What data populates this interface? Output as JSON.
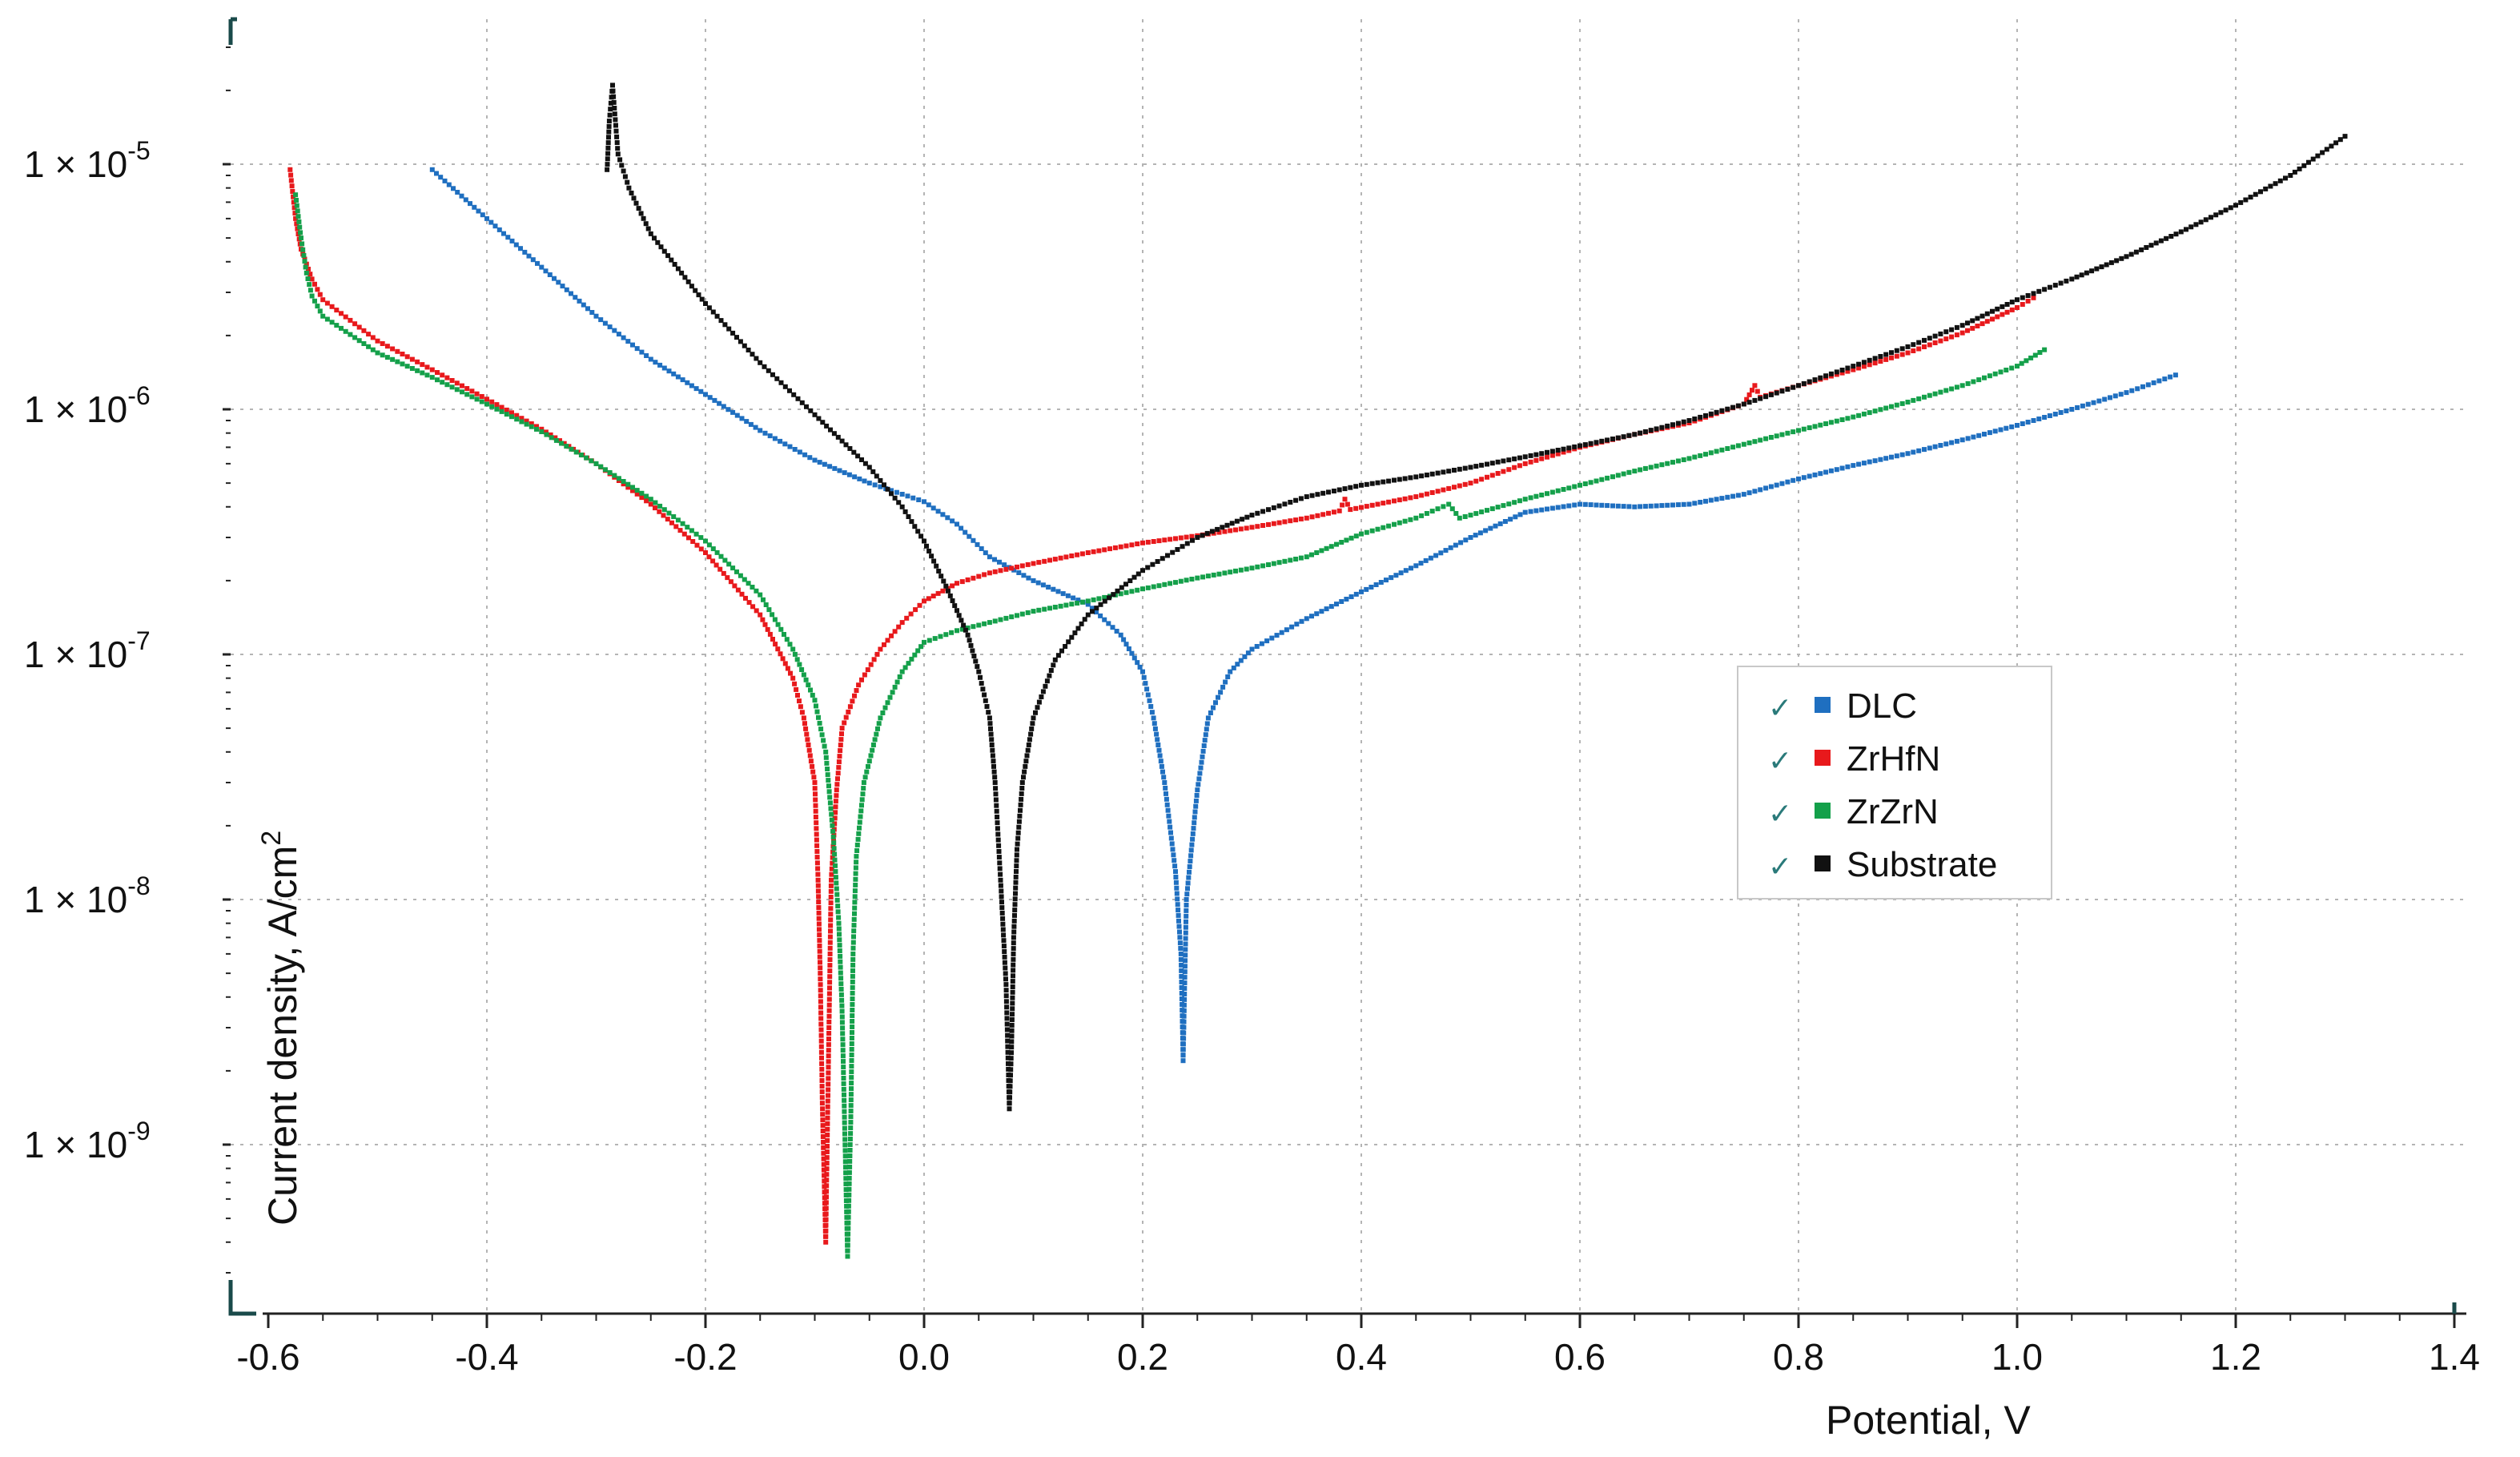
{
  "chart_data": {
    "type": "line",
    "title": "",
    "xlabel": "Potential, V",
    "ylabel": "Current density, A/cm",
    "ylabel_superscript": "2",
    "xscale": "linear",
    "yscale": "log",
    "xlim": [
      -0.67,
      1.41
    ],
    "ylim": [
      1.5e-10,
      4e-05
    ],
    "xticks": [
      -0.6,
      -0.4,
      -0.2,
      0.0,
      0.2,
      0.4,
      0.6,
      0.8,
      1.0,
      1.2,
      1.4
    ],
    "xtick_labels": [
      "-0.6",
      "-0.4",
      "-0.2",
      "0.0",
      "0.2",
      "0.4",
      "0.6",
      "0.8",
      "1.0",
      "1.2",
      "1.4"
    ],
    "yticks": [
      1e-05,
      1e-06,
      1e-07,
      1e-08,
      1e-09
    ],
    "ytick_labels": [
      {
        "base": "1 × 10",
        "exp": "-5"
      },
      {
        "base": "1 × 10",
        "exp": "-6"
      },
      {
        "base": "1 × 10",
        "exp": "-7"
      },
      {
        "base": "1 × 10",
        "exp": "-8"
      },
      {
        "base": "1 × 10",
        "exp": "-9"
      }
    ],
    "grid": true,
    "legend_position": "center-right",
    "legend_check_glyph": "✓",
    "series": [
      {
        "name": "DLC",
        "color": "#1f6fc0",
        "points": [
          [
            -0.45,
            9.5e-06
          ],
          [
            -0.4,
            6e-06
          ],
          [
            -0.35,
            3.8e-06
          ],
          [
            -0.3,
            2.4e-06
          ],
          [
            -0.25,
            1.6e-06
          ],
          [
            -0.2,
            1.15e-06
          ],
          [
            -0.15,
            8.2e-07
          ],
          [
            -0.1,
            6.2e-07
          ],
          [
            -0.05,
            5e-07
          ],
          [
            0.0,
            4.2e-07
          ],
          [
            0.03,
            3.4e-07
          ],
          [
            0.06,
            2.5e-07
          ],
          [
            0.1,
            2e-07
          ],
          [
            0.15,
            1.6e-07
          ],
          [
            0.18,
            1.2e-07
          ],
          [
            0.2,
            8.5e-08
          ],
          [
            0.21,
            5.5e-08
          ],
          [
            0.22,
            3e-08
          ],
          [
            0.23,
            1.3e-08
          ],
          [
            0.235,
            6e-09
          ],
          [
            0.237,
            2.2e-09
          ],
          [
            0.24,
            1e-08
          ],
          [
            0.25,
            2.8e-08
          ],
          [
            0.26,
            5.5e-08
          ],
          [
            0.28,
            8.5e-08
          ],
          [
            0.3,
            1.05e-07
          ],
          [
            0.35,
            1.4e-07
          ],
          [
            0.4,
            1.8e-07
          ],
          [
            0.45,
            2.3e-07
          ],
          [
            0.5,
            3e-07
          ],
          [
            0.55,
            3.8e-07
          ],
          [
            0.6,
            4.1e-07
          ],
          [
            0.65,
            4e-07
          ],
          [
            0.7,
            4.1e-07
          ],
          [
            0.75,
            4.5e-07
          ],
          [
            0.8,
            5.2e-07
          ],
          [
            0.85,
            5.9e-07
          ],
          [
            0.9,
            6.6e-07
          ],
          [
            0.95,
            7.5e-07
          ],
          [
            1.0,
            8.6e-07
          ],
          [
            1.05,
            1e-06
          ],
          [
            1.1,
            1.17e-06
          ],
          [
            1.145,
            1.38e-06
          ]
        ]
      },
      {
        "name": "ZrHfN",
        "color": "#e8191c",
        "points": [
          [
            -0.58,
            9.5e-06
          ],
          [
            -0.575,
            6e-06
          ],
          [
            -0.57,
            4.5e-06
          ],
          [
            -0.56,
            3.4e-06
          ],
          [
            -0.55,
            2.8e-06
          ],
          [
            -0.5,
            1.9e-06
          ],
          [
            -0.45,
            1.45e-06
          ],
          [
            -0.4,
            1.1e-06
          ],
          [
            -0.35,
            8.3e-07
          ],
          [
            -0.3,
            6e-07
          ],
          [
            -0.25,
            4.1e-07
          ],
          [
            -0.2,
            2.6e-07
          ],
          [
            -0.15,
            1.45e-07
          ],
          [
            -0.12,
            8e-08
          ],
          [
            -0.11,
            5.5e-08
          ],
          [
            -0.1,
            3e-08
          ],
          [
            -0.097,
            1.2e-08
          ],
          [
            -0.095,
            5e-09
          ],
          [
            -0.093,
            1.4e-09
          ],
          [
            -0.09,
            4e-10
          ],
          [
            -0.087,
            3e-09
          ],
          [
            -0.085,
            1.2e-08
          ],
          [
            -0.08,
            2.8e-08
          ],
          [
            -0.075,
            5e-08
          ],
          [
            -0.06,
            7.5e-08
          ],
          [
            -0.04,
            1.05e-07
          ],
          [
            -0.02,
            1.35e-07
          ],
          [
            0.0,
            1.65e-07
          ],
          [
            0.03,
            1.95e-07
          ],
          [
            0.06,
            2.15e-07
          ],
          [
            0.1,
            2.35e-07
          ],
          [
            0.15,
            2.6e-07
          ],
          [
            0.2,
            2.85e-07
          ],
          [
            0.25,
            3.05e-07
          ],
          [
            0.3,
            3.3e-07
          ],
          [
            0.35,
            3.6e-07
          ],
          [
            0.38,
            3.85e-07
          ],
          [
            0.385,
            4.3e-07
          ],
          [
            0.39,
            3.9e-07
          ],
          [
            0.45,
            4.4e-07
          ],
          [
            0.5,
            5e-07
          ],
          [
            0.55,
            6e-07
          ],
          [
            0.6,
            7e-07
          ],
          [
            0.65,
            7.9e-07
          ],
          [
            0.7,
            8.8e-07
          ],
          [
            0.75,
            1.05e-06
          ],
          [
            0.76,
            1.25e-06
          ],
          [
            0.765,
            1.12e-06
          ],
          [
            0.8,
            1.25e-06
          ],
          [
            0.85,
            1.45e-06
          ],
          [
            0.9,
            1.7e-06
          ],
          [
            0.95,
            2.05e-06
          ],
          [
            1.0,
            2.6e-06
          ],
          [
            1.015,
            2.85e-06
          ]
        ]
      },
      {
        "name": "ZrZrN",
        "color": "#14a04a",
        "points": [
          [
            -0.575,
            7.5e-06
          ],
          [
            -0.57,
            5e-06
          ],
          [
            -0.565,
            3.6e-06
          ],
          [
            -0.56,
            2.9e-06
          ],
          [
            -0.55,
            2.4e-06
          ],
          [
            -0.5,
            1.7e-06
          ],
          [
            -0.45,
            1.35e-06
          ],
          [
            -0.4,
            1.05e-06
          ],
          [
            -0.35,
            8.1e-07
          ],
          [
            -0.3,
            6e-07
          ],
          [
            -0.25,
            4.3e-07
          ],
          [
            -0.2,
            2.9e-07
          ],
          [
            -0.15,
            1.75e-07
          ],
          [
            -0.12,
            1.05e-07
          ],
          [
            -0.1,
            6.5e-08
          ],
          [
            -0.09,
            4e-08
          ],
          [
            -0.083,
            1.8e-08
          ],
          [
            -0.078,
            8e-09
          ],
          [
            -0.075,
            3.5e-09
          ],
          [
            -0.07,
            3.5e-10
          ],
          [
            -0.067,
            1.3e-09
          ],
          [
            -0.065,
            6e-09
          ],
          [
            -0.062,
            1.5e-08
          ],
          [
            -0.055,
            3e-08
          ],
          [
            -0.04,
            5.5e-08
          ],
          [
            -0.02,
            8.5e-08
          ],
          [
            0.0,
            1.12e-07
          ],
          [
            0.03,
            1.25e-07
          ],
          [
            0.06,
            1.35e-07
          ],
          [
            0.1,
            1.5e-07
          ],
          [
            0.15,
            1.65e-07
          ],
          [
            0.2,
            1.85e-07
          ],
          [
            0.25,
            2.05e-07
          ],
          [
            0.3,
            2.25e-07
          ],
          [
            0.35,
            2.5e-07
          ],
          [
            0.4,
            3.1e-07
          ],
          [
            0.45,
            3.6e-07
          ],
          [
            0.48,
            4.1e-07
          ],
          [
            0.49,
            3.6e-07
          ],
          [
            0.5,
            3.7e-07
          ],
          [
            0.55,
            4.3e-07
          ],
          [
            0.6,
            4.9e-07
          ],
          [
            0.65,
            5.6e-07
          ],
          [
            0.7,
            6.3e-07
          ],
          [
            0.75,
            7.2e-07
          ],
          [
            0.8,
            8.2e-07
          ],
          [
            0.85,
            9.3e-07
          ],
          [
            0.9,
            1.07e-06
          ],
          [
            0.95,
            1.25e-06
          ],
          [
            1.0,
            1.5e-06
          ],
          [
            1.025,
            1.75e-06
          ]
        ]
      },
      {
        "name": "Substrate",
        "color": "#111111",
        "points": [
          [
            -0.29,
            9.5e-06
          ],
          [
            -0.288,
            1.5e-05
          ],
          [
            -0.285,
            2.1e-05
          ],
          [
            -0.28,
            1.1e-05
          ],
          [
            -0.27,
            8e-06
          ],
          [
            -0.25,
            5.2e-06
          ],
          [
            -0.2,
            2.7e-06
          ],
          [
            -0.15,
            1.55e-06
          ],
          [
            -0.1,
            9.5e-07
          ],
          [
            -0.05,
            5.8e-07
          ],
          [
            -0.02,
            4e-07
          ],
          [
            0.0,
            2.9e-07
          ],
          [
            0.02,
            1.9e-07
          ],
          [
            0.04,
            1.2e-07
          ],
          [
            0.05,
            8.5e-08
          ],
          [
            0.06,
            5.5e-08
          ],
          [
            0.065,
            3e-08
          ],
          [
            0.07,
            1.2e-08
          ],
          [
            0.075,
            4.5e-09
          ],
          [
            0.078,
            1.4e-09
          ],
          [
            0.08,
            2.5e-09
          ],
          [
            0.082,
            7e-09
          ],
          [
            0.085,
            1.6e-08
          ],
          [
            0.09,
            3e-08
          ],
          [
            0.1,
            5.5e-08
          ],
          [
            0.12,
            9.5e-08
          ],
          [
            0.15,
            1.45e-07
          ],
          [
            0.2,
            2.2e-07
          ],
          [
            0.25,
            3e-07
          ],
          [
            0.3,
            3.7e-07
          ],
          [
            0.35,
            4.4e-07
          ],
          [
            0.4,
            4.9e-07
          ],
          [
            0.45,
            5.3e-07
          ],
          [
            0.5,
            5.8e-07
          ],
          [
            0.55,
            6.4e-07
          ],
          [
            0.6,
            7.1e-07
          ],
          [
            0.65,
            7.9e-07
          ],
          [
            0.7,
            9e-07
          ],
          [
            0.75,
            1.05e-06
          ],
          [
            0.8,
            1.25e-06
          ],
          [
            0.85,
            1.5e-06
          ],
          [
            0.9,
            1.8e-06
          ],
          [
            0.95,
            2.2e-06
          ],
          [
            1.0,
            2.8e-06
          ],
          [
            1.05,
            3.4e-06
          ],
          [
            1.1,
            4.2e-06
          ],
          [
            1.15,
            5.3e-06
          ],
          [
            1.2,
            6.8e-06
          ],
          [
            1.25,
            9e-06
          ],
          [
            1.3,
            1.3e-05
          ]
        ]
      }
    ]
  }
}
